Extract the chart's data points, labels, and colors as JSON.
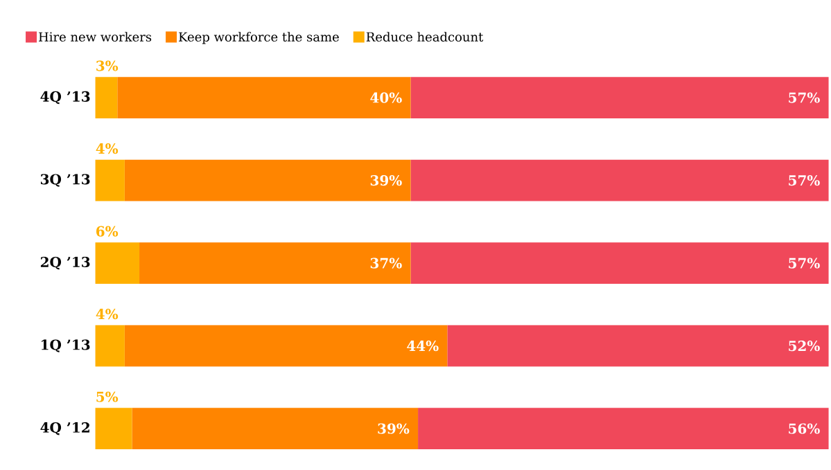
{
  "chart_data": {
    "type": "bar",
    "orientation": "horizontal",
    "stacked": true,
    "legend": "top left",
    "xlim": [
      0,
      100
    ],
    "categories": [
      "4Q ’13",
      "3Q ’13",
      "2Q ’13",
      "1Q ’13",
      "4Q ’12"
    ],
    "series": [
      {
        "name": "Reduce headcount",
        "color": "#ffb000",
        "values": [
          3,
          4,
          6,
          4,
          5
        ],
        "value_labels": [
          "3%",
          "4%",
          "6%",
          "4%",
          "5%"
        ]
      },
      {
        "name": "Keep workforce the same",
        "color": "#ff8500",
        "values": [
          40,
          39,
          37,
          44,
          39
        ],
        "value_labels": [
          "40%",
          "39%",
          "37%",
          "44%",
          "39%"
        ]
      },
      {
        "name": "Hire new workers",
        "color": "#f0485a",
        "values": [
          57,
          57,
          57,
          52,
          56
        ],
        "value_labels": [
          "57%",
          "57%",
          "57%",
          "52%",
          "56%"
        ]
      }
    ]
  }
}
